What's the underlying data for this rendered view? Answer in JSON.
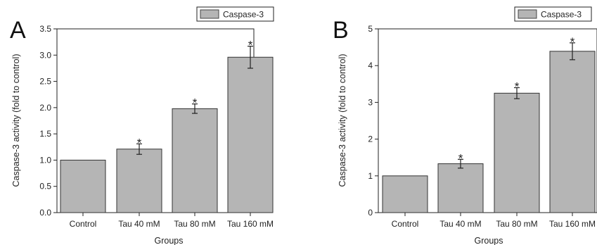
{
  "chart_data": [
    {
      "panel": "A",
      "type": "bar",
      "title": "",
      "xlabel": "Groups",
      "ylabel": "Caspase-3 activity  (fold to control)",
      "categories": [
        "Control",
        "Tau 40 mM",
        "Tau 80 mM",
        "Tau 160 mM"
      ],
      "series": [
        {
          "name": "Caspase-3",
          "values": [
            1.0,
            1.21,
            1.98,
            2.96
          ],
          "errors": [
            0,
            0.1,
            0.09,
            0.21
          ],
          "significance": [
            "",
            "*",
            "*",
            "*"
          ]
        }
      ],
      "ylim": [
        0,
        3.5
      ],
      "yticks": [
        "0.0",
        "0.5",
        "1.0",
        "1.5",
        "2.0",
        "2.5",
        "3.0",
        "3.5"
      ],
      "legend_position": "top-right",
      "grid": false,
      "bar_color": "#b5b5b5"
    },
    {
      "panel": "B",
      "type": "bar",
      "title": "",
      "xlabel": "Groups",
      "ylabel": "Caspase-3 activity  (fold to control)",
      "categories": [
        "Control",
        "Tau 40 mM",
        "Tau 80 mM",
        "Tau 160 mM"
      ],
      "series": [
        {
          "name": "Caspase-3",
          "values": [
            1.0,
            1.33,
            3.25,
            4.39
          ],
          "errors": [
            0,
            0.12,
            0.15,
            0.23
          ],
          "significance": [
            "",
            "*",
            "*",
            "*"
          ]
        }
      ],
      "ylim": [
        0,
        5
      ],
      "yticks": [
        "0",
        "1",
        "2",
        "3",
        "4",
        "5"
      ],
      "legend_position": "top-right",
      "grid": false,
      "bar_color": "#b5b5b5"
    }
  ]
}
